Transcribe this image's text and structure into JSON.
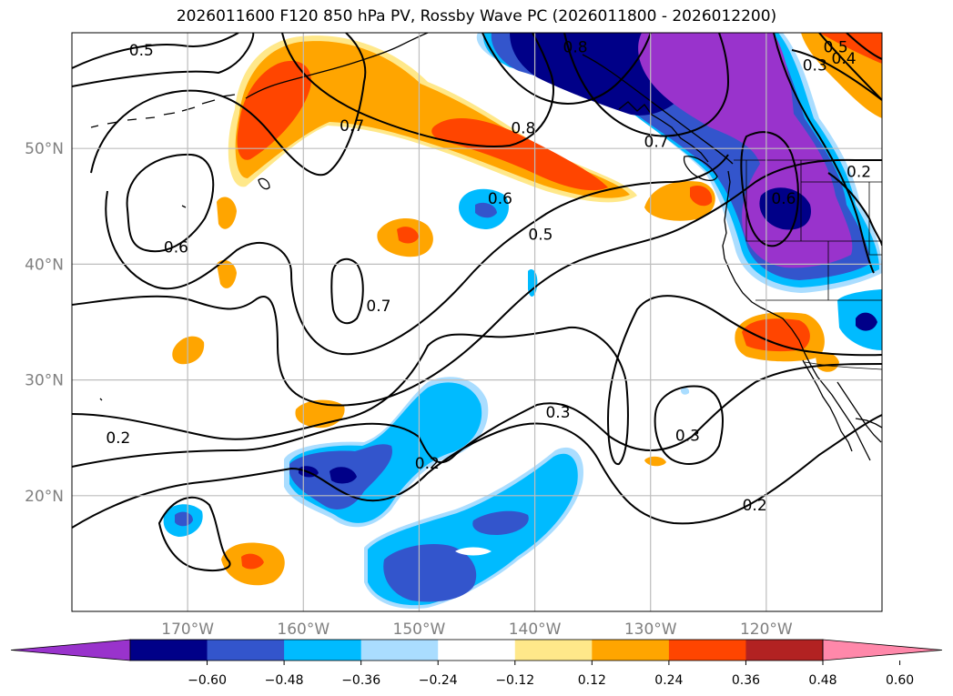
{
  "title": "2026011600 F120 850 hPa PV, Rossby Wave PC (2026011800 - 2026012200)",
  "map": {
    "lon_range": [
      -180,
      -110
    ],
    "lat_range": [
      10,
      60
    ],
    "lon_ticks": [
      {
        "value": -170,
        "label": "170°W"
      },
      {
        "value": -160,
        "label": "160°W"
      },
      {
        "value": -150,
        "label": "150°W"
      },
      {
        "value": -140,
        "label": "140°W"
      },
      {
        "value": -130,
        "label": "130°W"
      },
      {
        "value": -120,
        "label": "120°W"
      }
    ],
    "lat_ticks": [
      {
        "value": 20,
        "label": "20°N"
      },
      {
        "value": 30,
        "label": "30°N"
      },
      {
        "value": 40,
        "label": "40°N"
      },
      {
        "value": 50,
        "label": "50°N"
      }
    ],
    "grid": true
  },
  "colorbar": {
    "colors": [
      "#9933cc",
      "#000088",
      "#3355cc",
      "#00bbff",
      "#aaddff",
      "#ffffff",
      "#ffe88a",
      "#ffa500",
      "#ff4500",
      "#b22222",
      "#ff88aa"
    ],
    "tick_labels": [
      "−0.60",
      "−0.48",
      "−0.36",
      "−0.24",
      "−0.12",
      "0.12",
      "0.24",
      "0.36",
      "0.48",
      "0.60"
    ],
    "extend": "both"
  },
  "contour_labels": [
    {
      "text": "0.5",
      "lon": -174,
      "lat": 58.5
    },
    {
      "text": "0.8",
      "lon": -136.5,
      "lat": 58.8
    },
    {
      "text": "0.5",
      "lon": -114,
      "lat": 58.8
    },
    {
      "text": "0.4",
      "lon": -113.3,
      "lat": 57.8
    },
    {
      "text": "0.3",
      "lon": -115.8,
      "lat": 57.2
    },
    {
      "text": "0.7",
      "lon": -155.8,
      "lat": 52
    },
    {
      "text": "0.8",
      "lon": -141,
      "lat": 51.8
    },
    {
      "text": "0.7",
      "lon": -129.5,
      "lat": 50.6
    },
    {
      "text": "0.6",
      "lon": -118.5,
      "lat": 45.7
    },
    {
      "text": "0.2",
      "lon": -112,
      "lat": 48
    },
    {
      "text": "0.6",
      "lon": -143,
      "lat": 45.7
    },
    {
      "text": "0.5",
      "lon": -139.5,
      "lat": 42.6
    },
    {
      "text": "0.6",
      "lon": -171,
      "lat": 41.5
    },
    {
      "text": "0.7",
      "lon": -153.5,
      "lat": 36.4
    },
    {
      "text": "0.2",
      "lon": -176,
      "lat": 25
    },
    {
      "text": "0.3",
      "lon": -138,
      "lat": 27.2
    },
    {
      "text": "0.3",
      "lon": -126.8,
      "lat": 25.2
    },
    {
      "text": "0.2",
      "lon": -149.3,
      "lat": 22.8
    },
    {
      "text": "0.2",
      "lon": -121,
      "lat": 19.2
    }
  ]
}
